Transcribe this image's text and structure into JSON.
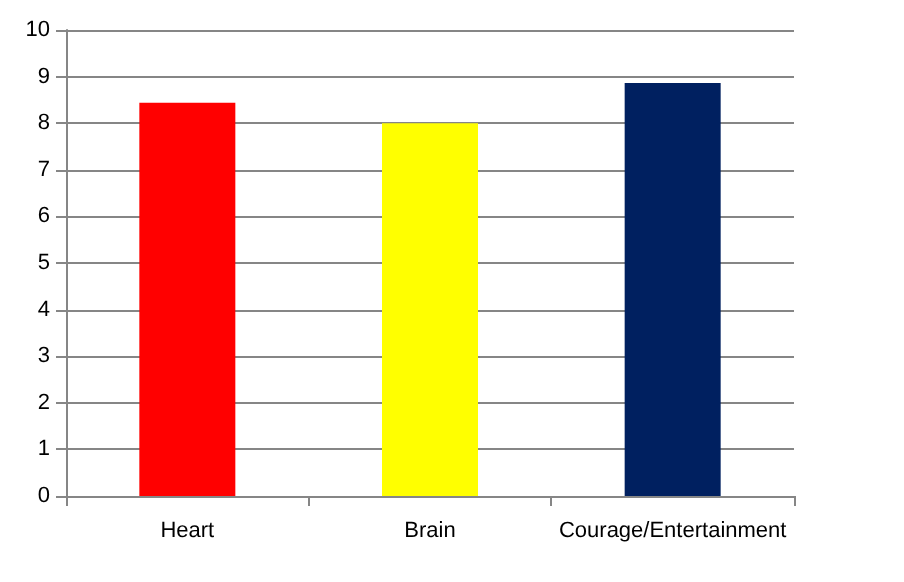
{
  "chart_data": {
    "type": "bar",
    "categories": [
      "Heart",
      "Brain",
      "Courage/Entertainment"
    ],
    "values": [
      8.44,
      8.0,
      8.86
    ],
    "colors": [
      "#ff0000",
      "#ffff00",
      "#002060"
    ],
    "ylim": [
      0,
      10
    ],
    "yticks": [
      0,
      1,
      2,
      3,
      4,
      5,
      6,
      7,
      8,
      9,
      10
    ],
    "grid": "y"
  }
}
